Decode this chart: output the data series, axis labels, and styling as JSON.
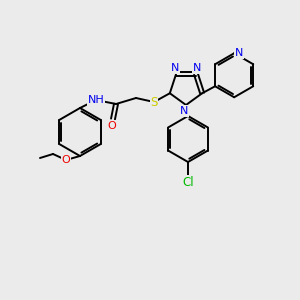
{
  "bg_color": "#ebebeb",
  "bond_color": "#000000",
  "bond_width": 1.4,
  "atom_colors": {
    "N": "#0000ee",
    "O": "#ee0000",
    "S": "#cccc00",
    "Cl": "#00bb00",
    "C": "#000000",
    "H": "#000000"
  },
  "font_size": 8.0,
  "font_size_small": 7.0
}
